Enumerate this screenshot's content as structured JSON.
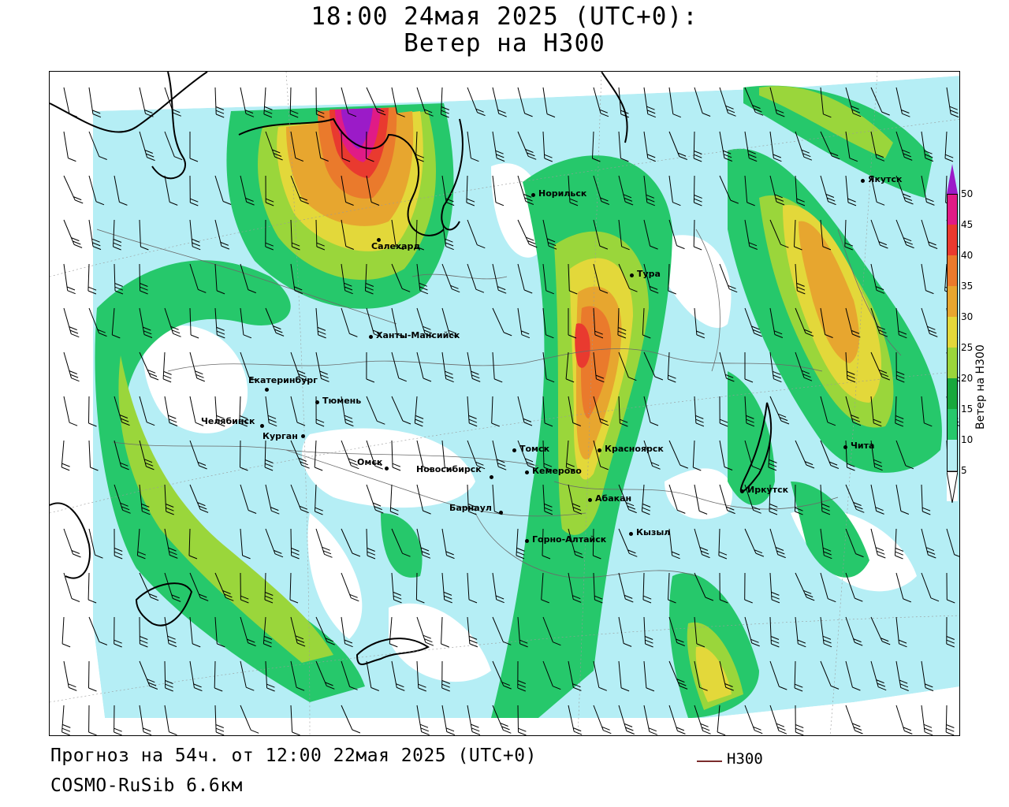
{
  "header": {
    "title_line1": "18:00 24мая 2025 (UTC+0):",
    "title_line2": "Ветер на H300"
  },
  "footer": {
    "forecast": "Прогноз на 54ч. от 12:00 22мая 2025 (UTC+0)",
    "model": "COSMO-RuSib 6.6км"
  },
  "legend": {
    "line_label": "H300",
    "line_color": "#7a2b2b"
  },
  "colorbar": {
    "title": "Ветер на H300",
    "ticks": [
      "5",
      "10",
      "15",
      "20",
      "25",
      "30",
      "35",
      "40",
      "45",
      "50"
    ],
    "colors": [
      "#ffffff",
      "#b5eef5",
      "#26c86b",
      "#17a83c",
      "#9ad63b",
      "#e3d83a",
      "#e7a62f",
      "#ea7a2c",
      "#e93a2f",
      "#e01b86",
      "#9b1bc8"
    ]
  },
  "cities": [
    {
      "name": "Норильск"
    },
    {
      "name": "Якутск"
    },
    {
      "name": "Салехард"
    },
    {
      "name": "Тура"
    },
    {
      "name": "Ханты-Мансийск"
    },
    {
      "name": "Екатеринбург"
    },
    {
      "name": "Тюмень"
    },
    {
      "name": "Челябинск"
    },
    {
      "name": "Курган"
    },
    {
      "name": "Томск"
    },
    {
      "name": "Красноярск"
    },
    {
      "name": "Омск"
    },
    {
      "name": "Новосибирск"
    },
    {
      "name": "Кемерово"
    },
    {
      "name": "Абакан"
    },
    {
      "name": "Барнаул"
    },
    {
      "name": "Горно-Алтайск"
    },
    {
      "name": "Кызыл"
    },
    {
      "name": "Иркутск"
    },
    {
      "name": "Чита"
    }
  ]
}
